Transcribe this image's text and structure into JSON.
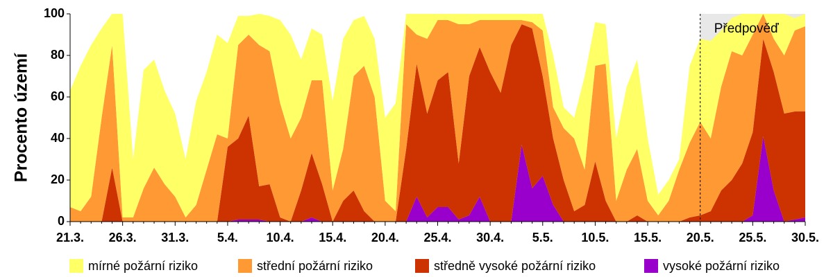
{
  "chart_data": {
    "type": "stacked_area",
    "y_label": "Procento území",
    "categories": [
      "21.3.",
      null,
      null,
      null,
      null,
      "26.3.",
      null,
      null,
      null,
      null,
      "31.3.",
      null,
      null,
      null,
      null,
      "5.4.",
      null,
      null,
      null,
      null,
      "10.4.",
      null,
      null,
      null,
      null,
      "15.4.",
      null,
      null,
      null,
      null,
      "20.4.",
      null,
      null,
      null,
      null,
      "25.4.",
      null,
      null,
      null,
      null,
      "30.4.",
      null,
      null,
      null,
      null,
      "5.5.",
      null,
      null,
      null,
      null,
      "10.5.",
      null,
      null,
      null,
      null,
      "15.5.",
      null,
      null,
      null,
      null,
      "20.5.",
      null,
      null,
      null,
      null,
      "25.5.",
      null,
      null,
      null,
      null,
      "30.5."
    ],
    "series": [
      {
        "name": "vysoké požární riziko",
        "color": "#9900cc",
        "values": [
          0,
          0,
          0,
          0,
          0,
          0,
          0,
          0,
          0,
          0,
          0,
          0,
          0,
          0,
          0,
          0,
          1,
          1,
          1,
          0,
          0,
          0,
          0,
          2,
          0,
          0,
          0,
          0,
          0,
          0,
          0,
          0,
          0,
          12,
          2,
          7,
          7,
          1,
          3,
          12,
          0,
          0,
          0,
          37,
          16,
          22,
          8,
          0,
          0,
          0,
          0,
          0,
          0,
          0,
          0,
          0,
          0,
          0,
          0,
          0,
          0,
          0,
          0,
          0,
          0,
          3,
          41,
          15,
          0,
          1,
          2
        ]
      },
      {
        "name": "středně vysoké požární riziko",
        "color": "#cc3300",
        "values": [
          0,
          0,
          0,
          0,
          26,
          0,
          0,
          0,
          0,
          0,
          0,
          0,
          0,
          0,
          0,
          36,
          39,
          50,
          16,
          18,
          2,
          0,
          15,
          31,
          18,
          0,
          10,
          15,
          5,
          0,
          0,
          0,
          35,
          64,
          50,
          61,
          65,
          27,
          67,
          72,
          72,
          62,
          85,
          58,
          77,
          48,
          32,
          20,
          5,
          8,
          29,
          10,
          0,
          0,
          3,
          0,
          0,
          0,
          0,
          2,
          3,
          5,
          15,
          20,
          28,
          40,
          47,
          57,
          52,
          52,
          51
        ]
      },
      {
        "name": "střední požární riziko",
        "color": "#ff9933",
        "values": [
          7,
          5,
          12,
          50,
          59,
          2,
          2,
          16,
          26,
          18,
          12,
          2,
          8,
          25,
          42,
          4,
          45,
          39,
          68,
          64,
          55,
          40,
          35,
          35,
          50,
          15,
          25,
          55,
          70,
          60,
          10,
          5,
          60,
          14,
          36,
          29,
          25,
          67,
          25,
          13,
          25,
          35,
          12,
          2,
          3,
          22,
          15,
          25,
          35,
          17,
          46,
          66,
          10,
          25,
          32,
          10,
          3,
          10,
          25,
          36,
          45,
          35,
          50,
          62,
          52,
          47,
          12,
          16,
          28,
          39,
          41
        ]
      },
      {
        "name": "mírné požární riziko",
        "color": "#ffff66",
        "values": [
          56,
          70,
          73,
          43,
          15,
          98,
          28,
          57,
          52,
          45,
          40,
          28,
          50,
          47,
          48,
          46,
          14,
          9,
          15,
          17,
          40,
          50,
          28,
          25,
          22,
          43,
          53,
          27,
          24,
          28,
          40,
          52,
          5,
          10,
          12,
          3,
          3,
          5,
          5,
          3,
          3,
          3,
          3,
          3,
          4,
          8,
          25,
          10,
          10,
          45,
          21,
          19,
          30,
          40,
          43,
          30,
          10,
          10,
          5,
          37,
          40,
          47,
          27,
          16,
          20,
          10,
          0,
          12,
          20,
          6,
          6
        ]
      }
    ],
    "ylim": [
      0,
      100
    ],
    "yticks": [
      0,
      20,
      40,
      60,
      80,
      100
    ],
    "annotation": {
      "text": "Předpověď",
      "category": "20.5."
    },
    "forecast_color": "#e8e8e8",
    "grid": false,
    "legend": "bottom"
  }
}
